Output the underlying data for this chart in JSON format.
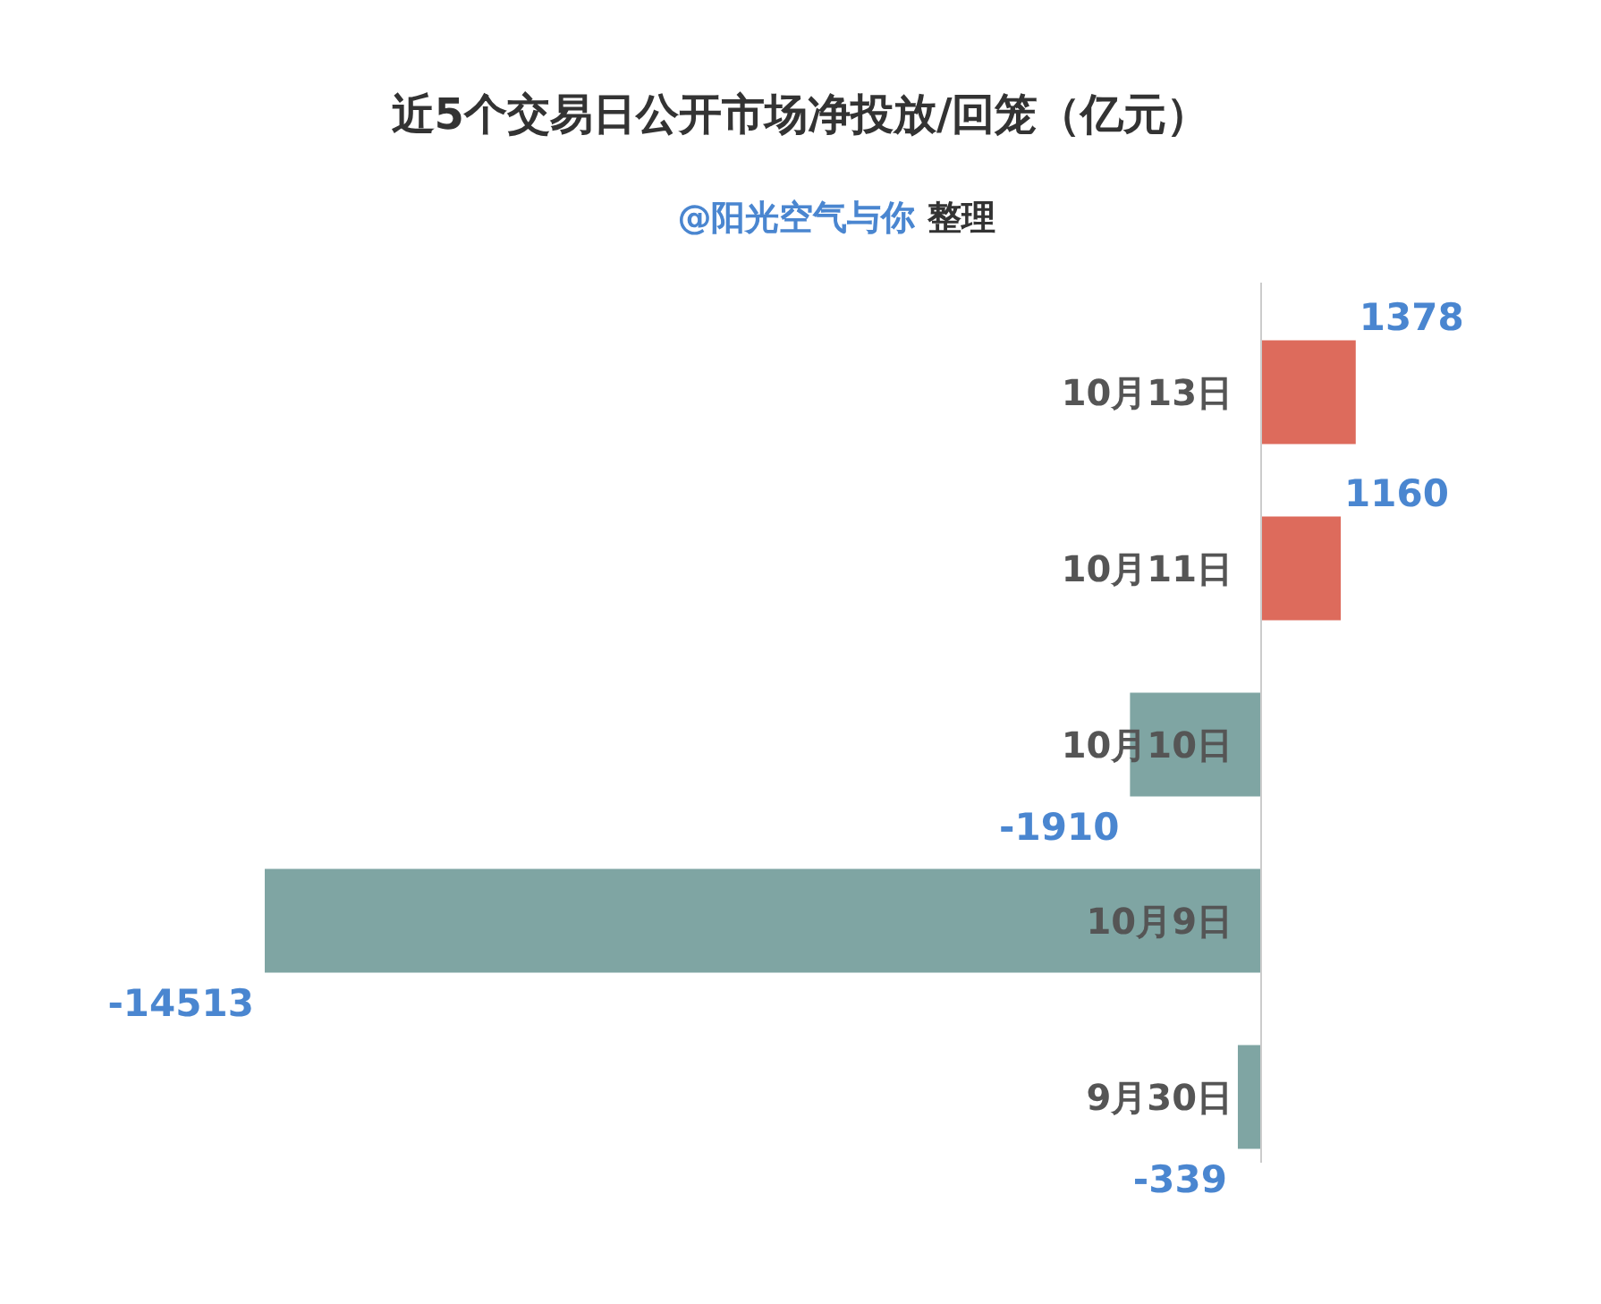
{
  "chart_data": {
    "type": "bar",
    "orientation": "horizontal",
    "relative": false,
    "title": "近5个交易日公开市场净投放/回笼（亿元）",
    "subtitle": "@阳光空气与你 整理",
    "categories": [
      "10月13日",
      "10月11日",
      "10月10日",
      "10月9日",
      "9月30日"
    ],
    "values": [
      1378,
      1160,
      -1910,
      -14513,
      -339
    ],
    "colors": [
      "#dd6b5c",
      "#dd6b5c",
      "#7fa5a3",
      "#7fa5a3",
      "#7fa5a3"
    ],
    "data_labels": true
  }
}
